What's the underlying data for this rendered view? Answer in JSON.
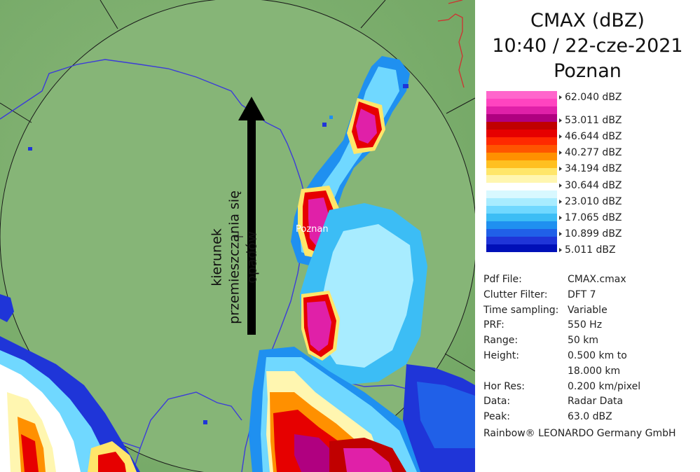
{
  "product": "CMAX (dBZ)",
  "datetime": "10:40 / 22-cze-2021",
  "site": "Poznan",
  "legend": {
    "labels": [
      "62.040 dBZ",
      "53.011 dBZ",
      "46.644 dBZ",
      "40.277 dBZ",
      "34.194 dBZ",
      "30.644 dBZ",
      "23.010 dBZ",
      "17.065 dBZ",
      "10.899 dBZ",
      "5.011 dBZ"
    ],
    "colors": [
      "#ff66cc",
      "#ff44c0",
      "#e020a8",
      "#b00080",
      "#c00000",
      "#e60000",
      "#ff2a00",
      "#ff5500",
      "#ff9000",
      "#ffc020",
      "#ffe66a",
      "#fff6b0",
      "#ffffff",
      "#d8f8ff",
      "#a8ecff",
      "#70d8ff",
      "#3cbdf5",
      "#1f90f0",
      "#2060e8",
      "#1f35d8",
      "#0010b8"
    ]
  },
  "info": [
    {
      "key": "Pdf File:",
      "value": "CMAX.cmax"
    },
    {
      "key": "Clutter Filter:",
      "value": "DFT 7"
    },
    {
      "key": "Time sampling:",
      "value": "Variable"
    },
    {
      "key": "PRF:",
      "value": "550 Hz"
    },
    {
      "key": "Range:",
      "value": "50 km"
    },
    {
      "key": "Height:",
      "value": "0.500 km to"
    },
    {
      "key": "",
      "value": "18.000 km"
    },
    {
      "key": "Hor Res:",
      "value": "0.200 km/pixel"
    },
    {
      "key": "Data:",
      "value": "Radar Data"
    },
    {
      "key": "Peak:",
      "value": "63.0 dBZ"
    }
  ],
  "footer": "Rainbow® LEONARDO Germany GmbH",
  "map": {
    "city_label": "Poznan",
    "direction_line1": "kierunek",
    "direction_line2": "przemieszczania się opadów"
  },
  "colors": {
    "terrain": "#7cae6c",
    "range_disk": "#86b577",
    "border": "#3c3cd8",
    "river": "#d03030"
  }
}
